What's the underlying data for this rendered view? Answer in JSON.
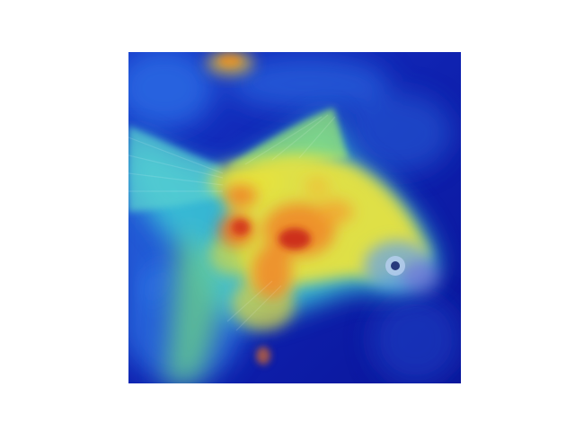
{
  "figure": {
    "content": "heatmap-overlay",
    "colormap": "jet",
    "colors": {
      "background": "#ffffff",
      "cold": "#0a1aa8",
      "cool": "#1e5fe0",
      "cyan": "#34c8d8",
      "yellow": "#f2ea3a",
      "orange": "#f08a28",
      "hot": "#c81e14"
    }
  }
}
